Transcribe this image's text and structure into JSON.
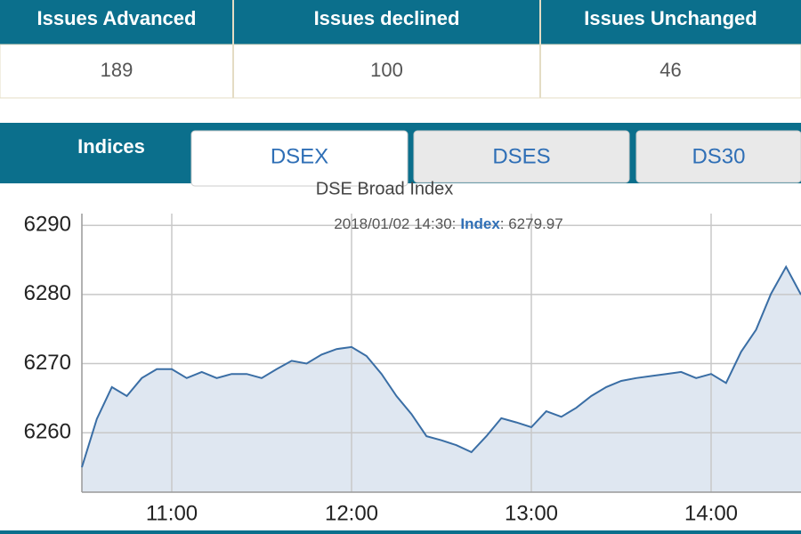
{
  "table": {
    "headers": [
      "Issues Advanced",
      "Issues declined",
      "Issues Unchanged"
    ],
    "values": [
      189,
      100,
      46
    ]
  },
  "tabs": {
    "label": "Indices",
    "items": [
      "DSEX",
      "DSES",
      "DS30"
    ],
    "active": 0
  },
  "chart_data": {
    "type": "line",
    "title": "DSE Broad Index",
    "tooltip": [
      "2018/01/02 14:30:",
      ": 6279.97"
    ],
    "x": [
      630,
      635,
      640,
      645,
      650,
      655,
      660,
      665,
      670,
      675,
      680,
      685,
      690,
      695,
      700,
      705,
      710,
      715,
      720,
      725,
      730,
      735,
      740,
      745,
      750,
      755,
      760,
      765,
      770,
      775,
      780,
      785,
      790,
      795,
      800,
      805,
      810,
      815,
      820,
      825,
      830,
      835,
      840,
      845,
      850,
      855,
      860,
      865,
      870
    ],
    "series": [
      {
        "name": "Index",
        "color": "#3a6ea5",
        "fill": "#dfe7f1",
        "values": [
          6255,
          6262,
          6266.6,
          6265.3,
          6267.9,
          6269.2,
          6269.2,
          6267.9,
          6268.8,
          6267.9,
          6268.5,
          6268.5,
          6267.9,
          6269.2,
          6270.4,
          6270,
          6271.3,
          6272.1,
          6272.4,
          6271.1,
          6268.5,
          6265.3,
          6262.7,
          6259.5,
          6258.9,
          6258.2,
          6257.2,
          6259.5,
          6262.1,
          6261.5,
          6260.8,
          6263.1,
          6262.3,
          6263.6,
          6265.3,
          6266.6,
          6267.5,
          6267.9,
          6268.2,
          6268.5,
          6268.8,
          6267.9,
          6268.5,
          6267.2,
          6271.7,
          6274.9,
          6280.1,
          6284,
          6279.97
        ]
      }
    ],
    "xlim": [
      630,
      870
    ],
    "xticks": [
      {
        "value": 660,
        "label": "11:00"
      },
      {
        "value": 720,
        "label": "12:00"
      },
      {
        "value": 780,
        "label": "13:00"
      },
      {
        "value": 840,
        "label": "14:00"
      }
    ],
    "ylim": [
      6251.4,
      6291.7
    ],
    "yticks": [
      6260,
      6270,
      6280,
      6290
    ],
    "grid": true
  }
}
